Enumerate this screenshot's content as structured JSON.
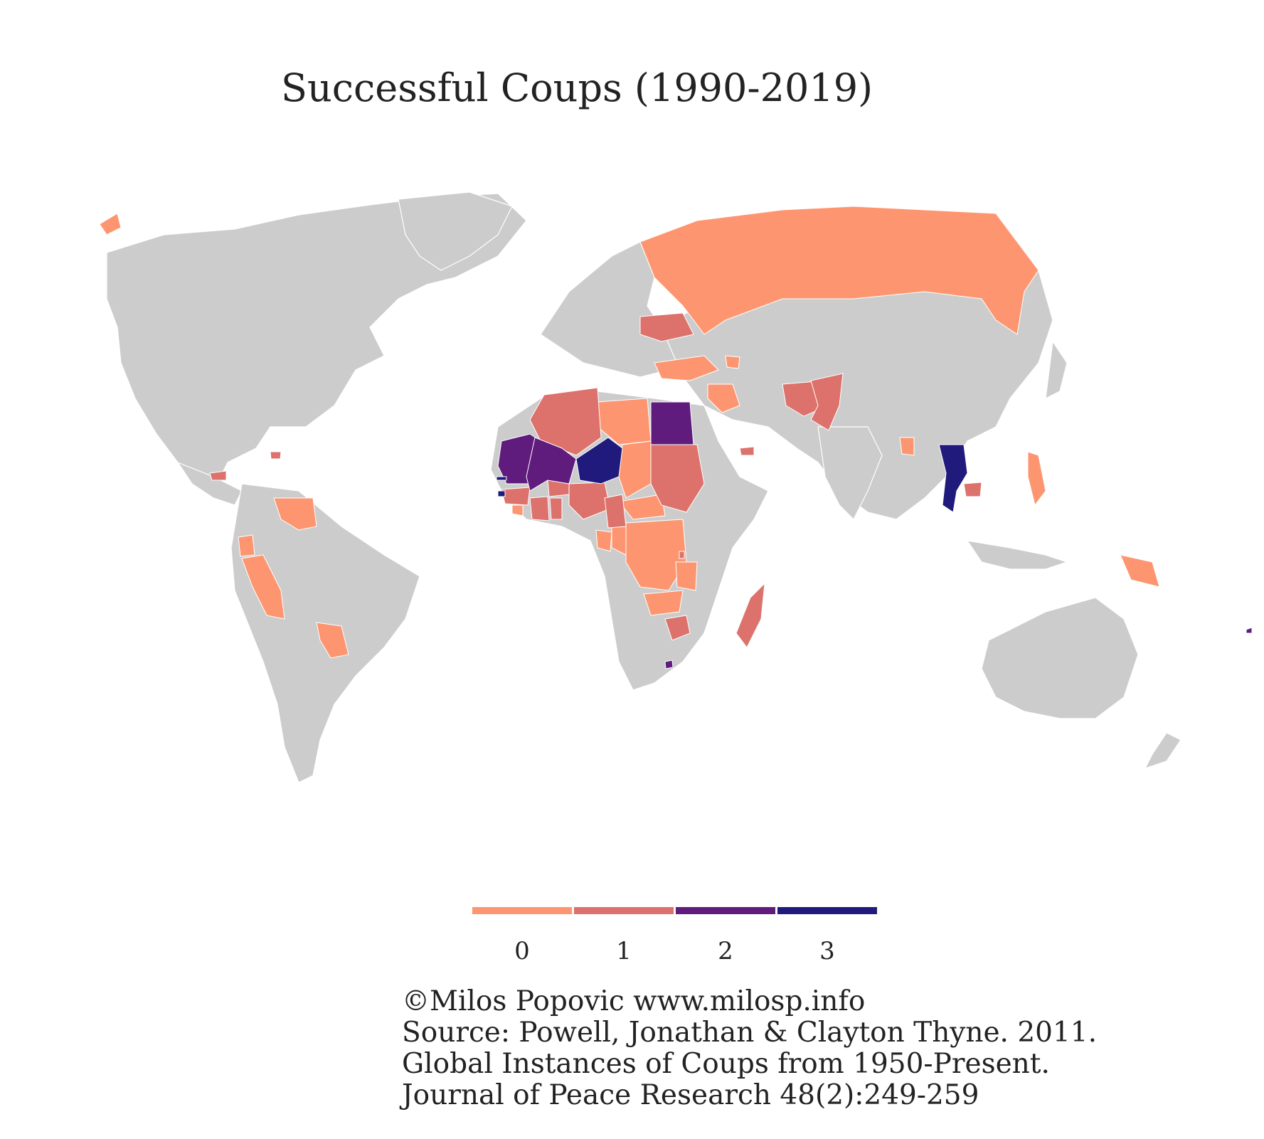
{
  "title": "Successful Coups (1990-2019)",
  "colors": {
    "background": "#ffffff",
    "no_data": "#cccccc",
    "c0": "#fd9670",
    "c1": "#dc726b",
    "c2": "#5f1c7d",
    "c3": "#1f1a7b"
  },
  "legend": {
    "items": [
      {
        "label": "0",
        "color": "#fd9670"
      },
      {
        "label": "1",
        "color": "#dc726b"
      },
      {
        "label": "2",
        "color": "#5f1c7d"
      },
      {
        "label": "3",
        "color": "#1f1a7b"
      }
    ]
  },
  "caption": {
    "lines": [
      "©Milos Popovic www.milosp.info",
      "Source: Powell, Jonathan & Clayton Thyne. 2011.",
      "Global Instances of Coups from 1950-Present.",
      "Journal of Peace Research 48(2):249-259"
    ]
  },
  "map_data": {
    "Russia": 0,
    "Turkey": 0,
    "Azerbaijan": 0,
    "Iraq": 0,
    "Libya": 0,
    "Chad": 0,
    "Central African Republic": 0,
    "DR Congo": 0,
    "Congo": 0,
    "Gabon": 0,
    "Sierra Leone": 0,
    "Zambia": 0,
    "Tanzania": 0,
    "Philippines": 0,
    "Papua New Guinea": 0,
    "Venezuela": 0,
    "Ecuador": 0,
    "Peru": 0,
    "Paraguay": 0,
    "Alaska": 0,
    "Bangladesh": 0,
    "Bahrain": 0,
    "Ukraine": 1,
    "Pakistan": 1,
    "Afghanistan": 1,
    "Algeria": 1,
    "Sudan": 1,
    "Nigeria": 1,
    "Cameroon": 1,
    "Ivory Coast": 1,
    "Guinea": 1,
    "Burkina Faso": 1,
    "Madagascar": 1,
    "Zimbabwe": 1,
    "Cambodia": 1,
    "Honduras": 1,
    "Haiti": 1,
    "Burundi": 1,
    "Ghana": 1,
    "Comoros": 1,
    "Yemen": 1,
    "Mauritania": 2,
    "Mali": 2,
    "Egypt": 2,
    "Lesotho": 2,
    "Fiji": 2,
    "Niger": 3,
    "Thailand": 3,
    "Guinea-Bissau": 3,
    "Gambia": 3
  }
}
